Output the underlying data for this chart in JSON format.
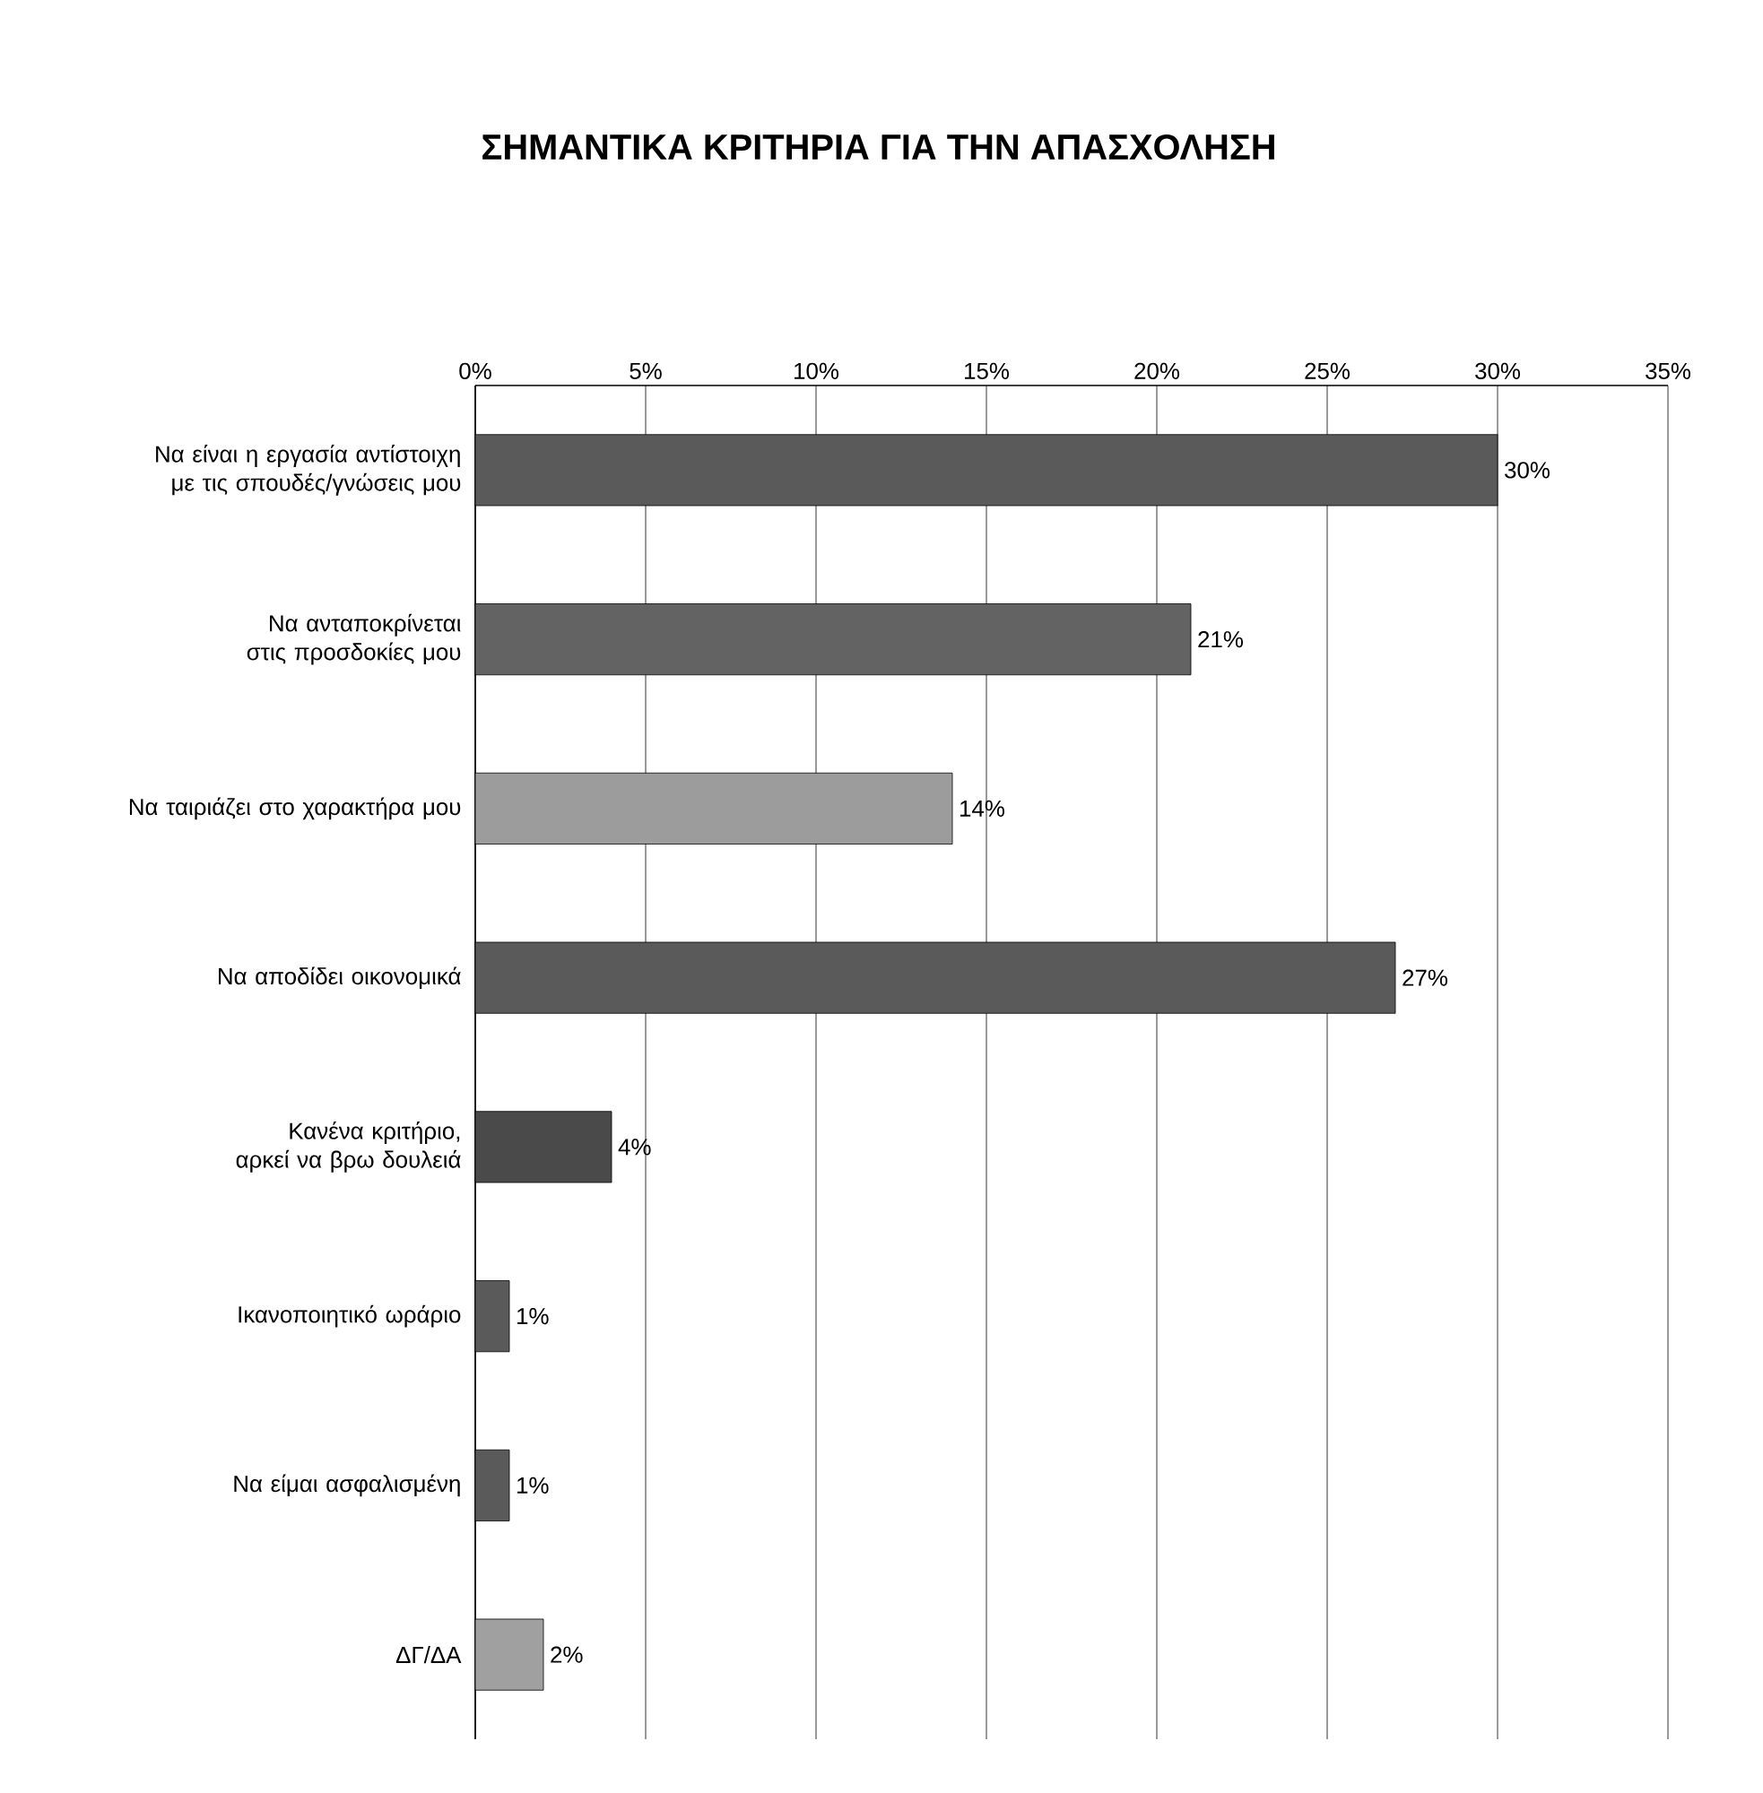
{
  "chart_data": {
    "type": "bar",
    "orientation": "horizontal",
    "title": "ΣΗΜΑΝΤΙΚΑ ΚΡΙΤΗΡΙΑ ΓΙΑ ΤΗΝ ΑΠΑΣΧΟΛΗΣΗ",
    "categories": [
      "Να είναι η εργασία αντίστοιχη με τις σπουδές/γνώσεις μου",
      "Να ανταποκρίνεται στις προσδοκίες μου",
      "Να ταιριάζει στο χαρακτήρα μου",
      "Να αποδίδει οικονομικά",
      "Κανένα κριτήριο, αρκεί να βρω δουλειά",
      "Ικανοποιητικό ωράριο",
      "Να είμαι ασφαλισμένη",
      "ΔΓ/ΔΑ"
    ],
    "values": [
      30,
      21,
      14,
      27,
      4,
      1,
      1,
      2
    ],
    "value_labels": [
      "30%",
      "21%",
      "14%",
      "27%",
      "4%",
      "1%",
      "1%",
      "2%"
    ],
    "colors": [
      "#5a5a5a",
      "#636363",
      "#9c9c9c",
      "#5a5a5a",
      "#4a4a4a",
      "#5a5a5a",
      "#5a5a5a",
      "#a0a0a0"
    ],
    "xlim": [
      0,
      35
    ],
    "xticks": [
      {
        "value": 0,
        "label": "0%"
      },
      {
        "value": 5,
        "label": "5%"
      },
      {
        "value": 10,
        "label": "10%"
      },
      {
        "value": 15,
        "label": "15%"
      },
      {
        "value": 20,
        "label": "20%"
      },
      {
        "value": 25,
        "label": "25%"
      },
      {
        "value": 30,
        "label": "30%"
      },
      {
        "value": 35,
        "label": "35%"
      }
    ],
    "grid": "x"
  }
}
